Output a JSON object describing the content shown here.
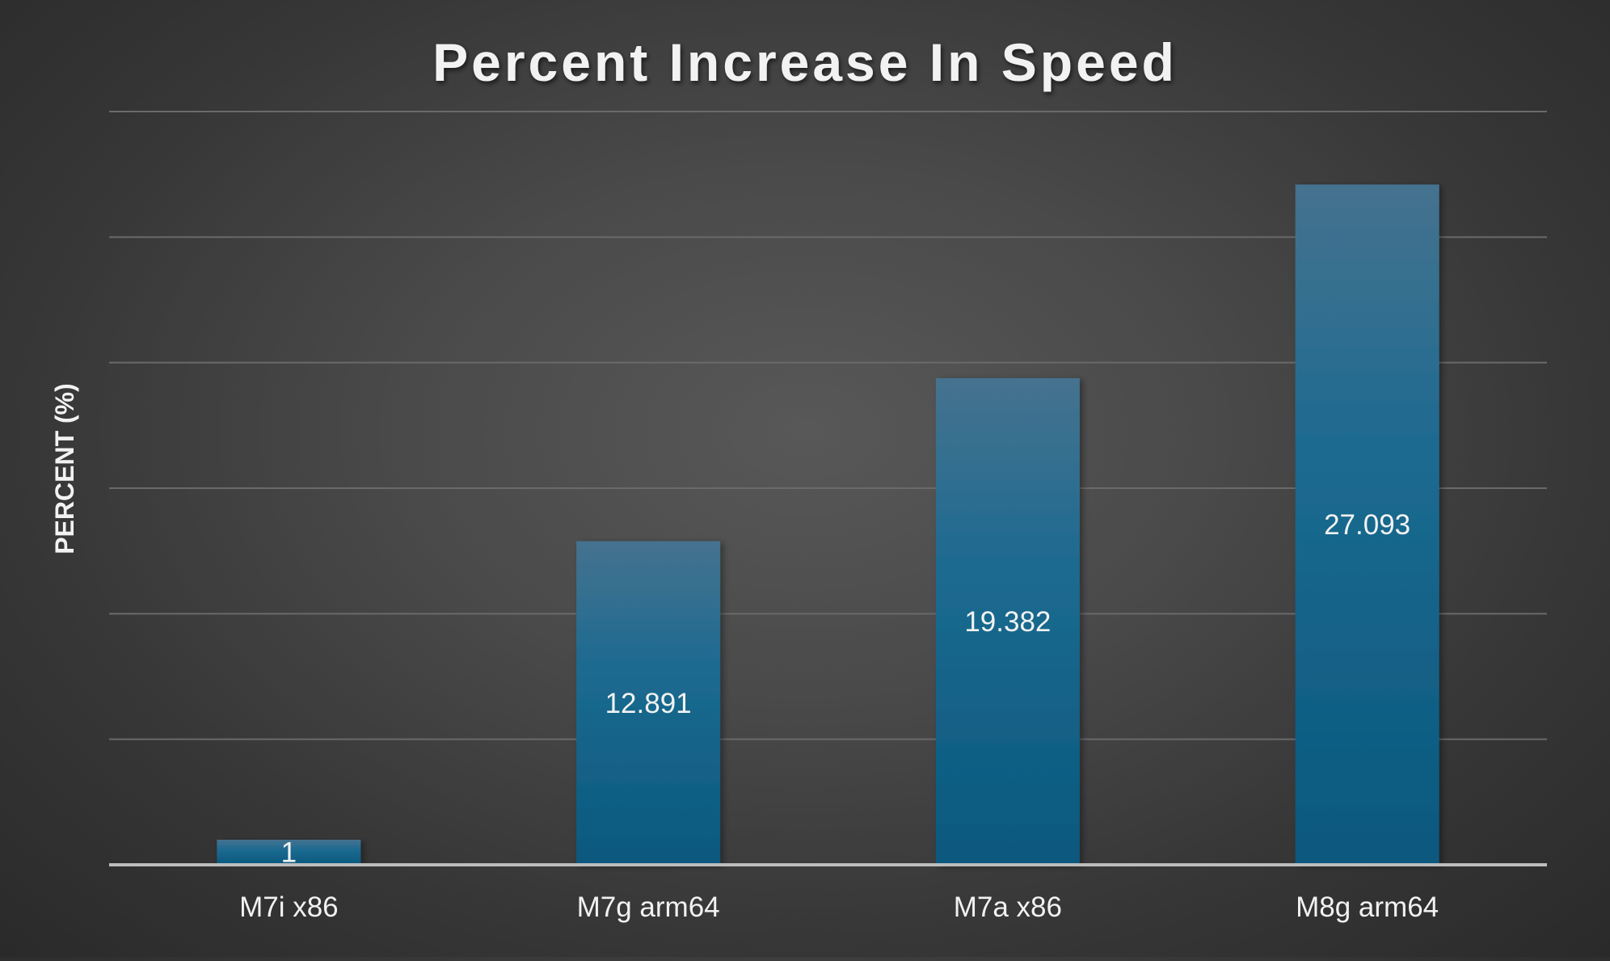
{
  "chart_data": {
    "type": "bar",
    "title": "Percent Increase In Speed",
    "xlabel": "",
    "ylabel": "PERCENT (%)",
    "categories": [
      "M7i x86",
      "M7g arm64",
      "M7a x86",
      "M8g arm64"
    ],
    "values": [
      1,
      12.891,
      19.382,
      27.093
    ],
    "data_labels": [
      "1",
      "12.891",
      "19.382",
      "27.093"
    ],
    "ylim": [
      0,
      30
    ],
    "y_tick_labels_shown": false,
    "grid": true,
    "legend": "none"
  },
  "colors": {
    "bar_top": "#45728f",
    "bar_bottom": "#0a587e",
    "text": "#f2f2f2",
    "gridline": "#6a6a6a",
    "baseline": "#bdbdbd"
  }
}
